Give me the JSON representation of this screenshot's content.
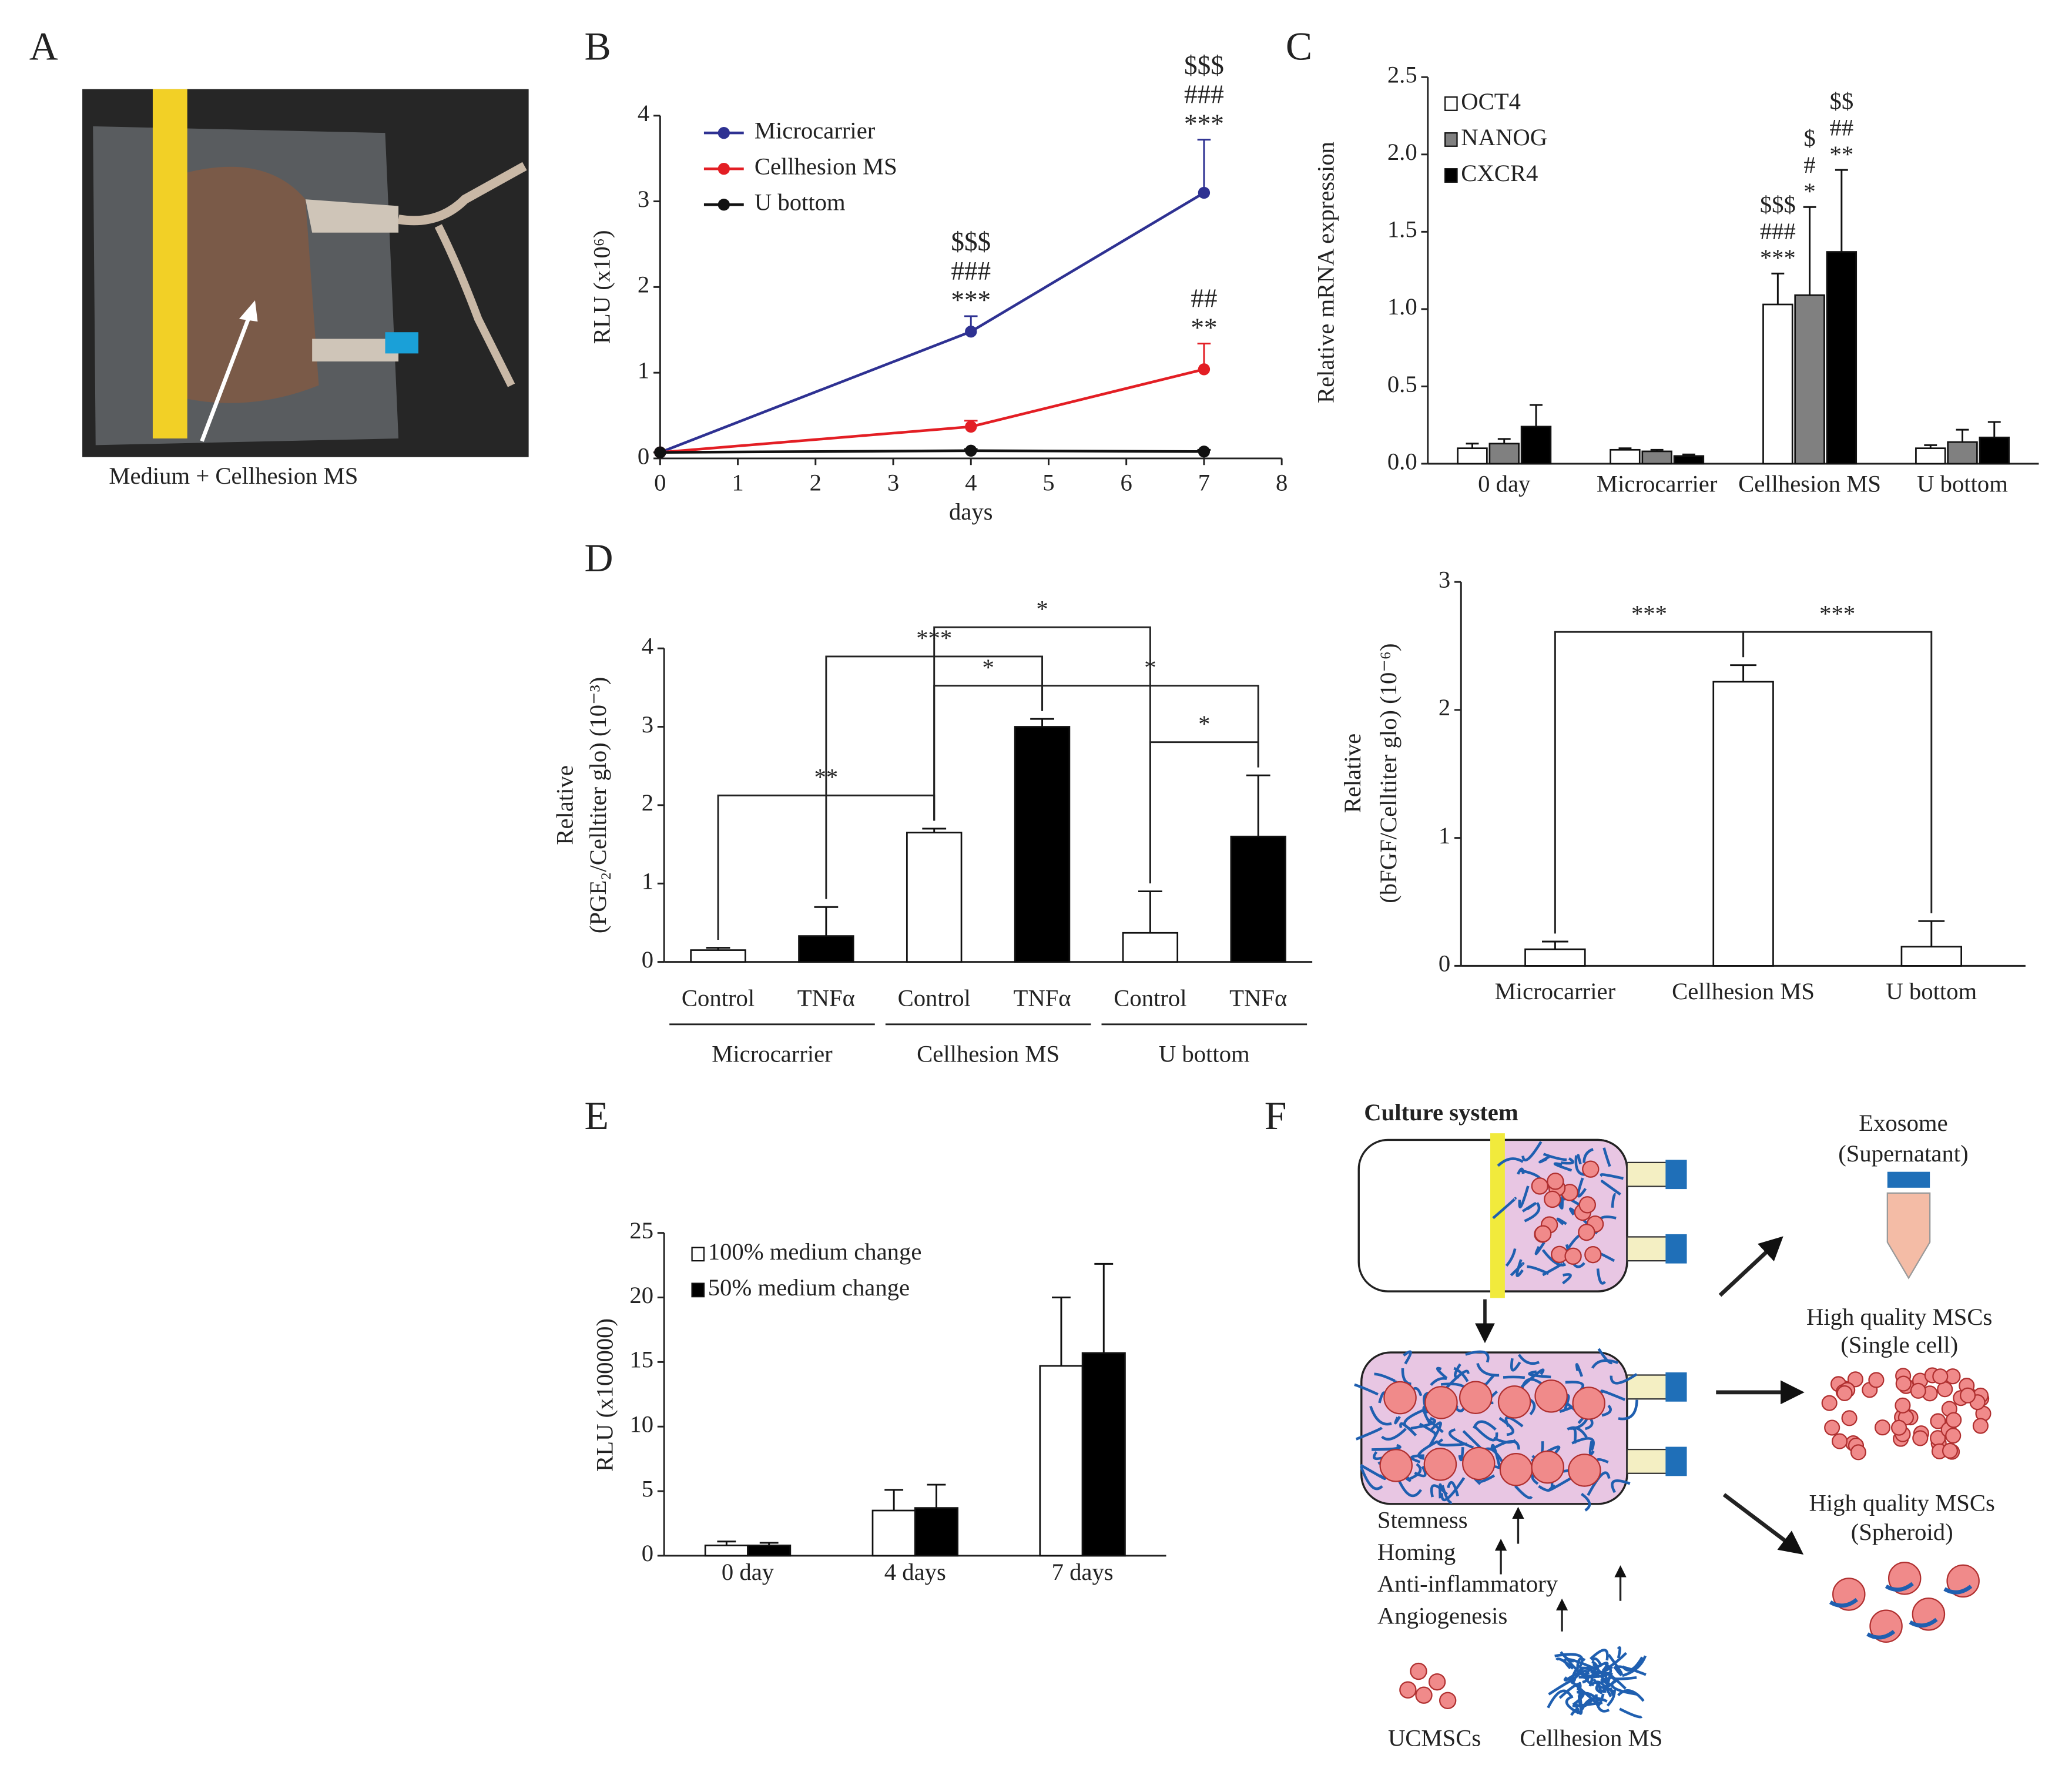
{
  "panel_labels": [
    "A",
    "B",
    "C",
    "D",
    "E",
    "F"
  ],
  "photo_caption": "Medium + Cellhesion MS",
  "chart_data": [
    {
      "type": "line",
      "ylabel": "RLU (x10⁶)",
      "xlabel": "days",
      "x": [
        0,
        4,
        7
      ],
      "xlim": [
        0,
        8
      ],
      "xticks": [
        0,
        1,
        2,
        3,
        4,
        5,
        6,
        7,
        8
      ],
      "ylim": [
        0,
        4
      ],
      "yticks": [
        0,
        1,
        2,
        3,
        4
      ],
      "legend": "upper left",
      "series": [
        {
          "name": "Microcarrier",
          "color": "#2e3192",
          "values": [
            0.07,
            1.48,
            3.1
          ],
          "errors": [
            0,
            0.18,
            0.62
          ],
          "significance": [
            null,
            [
              "$$$",
              "###",
              "***"
            ],
            [
              "$$$",
              "###",
              "***"
            ]
          ]
        },
        {
          "name": "Cellhesion MS",
          "color": "#e31e24",
          "values": [
            0.07,
            0.37,
            1.04
          ],
          "errors": [
            0,
            0.07,
            0.3
          ],
          "significance": [
            null,
            null,
            [
              "##",
              "**"
            ]
          ]
        },
        {
          "name": "U bottom",
          "color": "#111111",
          "values": [
            0.07,
            0.09,
            0.08
          ],
          "errors": [
            0,
            0.02,
            0.02
          ],
          "significance": [
            null,
            null,
            null
          ]
        }
      ]
    },
    {
      "type": "bar",
      "ylabel": "Relative mRNA expression",
      "categories": [
        "0 day",
        "Microcarrier",
        "Cellhesion MS",
        "U bottom"
      ],
      "ylim": [
        0,
        2.5
      ],
      "yticks": [
        {
          "value": 0,
          "label": "0.0"
        },
        0.5,
        {
          "value": 1,
          "label": "1.0"
        },
        1.5,
        {
          "value": 2,
          "label": "2.0"
        },
        2.5
      ],
      "legend": "upper left",
      "series": [
        {
          "name": "OCT4",
          "color": "#ffffff",
          "values": [
            0.1,
            0.09,
            1.03,
            0.1
          ],
          "errors": [
            0.03,
            0.01,
            0.2,
            0.02
          ],
          "significance": [
            null,
            null,
            [
              "$$$",
              "###",
              "***"
            ],
            null
          ]
        },
        {
          "name": "NANOG",
          "color": "#808080",
          "values": [
            0.13,
            0.08,
            1.09,
            0.14
          ],
          "errors": [
            0.03,
            0.01,
            0.57,
            0.08
          ],
          "significance": [
            null,
            null,
            [
              "$",
              "#",
              "*"
            ],
            null
          ]
        },
        {
          "name": "CXCR4",
          "color": "#000000",
          "values": [
            0.24,
            0.05,
            1.37,
            0.17
          ],
          "errors": [
            0.14,
            0.01,
            0.53,
            0.1
          ],
          "significance": [
            null,
            null,
            [
              "$$",
              "##",
              "**"
            ],
            null
          ]
        }
      ]
    },
    {
      "type": "bar",
      "ylabel": [
        "Relative",
        "(PGE₂/Celltiter glo) (10⁻³)"
      ],
      "categories": [
        "Control",
        "TNFα",
        "Control",
        "TNFα",
        "Control",
        "TNFα"
      ],
      "groups": [
        "Microcarrier",
        "Cellhesion MS",
        "U bottom"
      ],
      "ylim": [
        0,
        4
      ],
      "yticks": [
        0,
        1,
        2,
        3,
        4
      ],
      "values": [
        0.15,
        0.33,
        1.65,
        3.0,
        0.37,
        1.6
      ],
      "errors": [
        0.03,
        0.37,
        0.05,
        0.1,
        0.53,
        0.78
      ],
      "colors": [
        "#ffffff",
        "#000000",
        "#ffffff",
        "#000000",
        "#ffffff",
        "#000000"
      ],
      "comparisons": [
        {
          "bars": [
            0,
            2
          ],
          "label": "**"
        },
        {
          "bars": [
            1,
            3
          ],
          "label": "***"
        },
        {
          "bars": [
            2,
            3
          ],
          "label": "*"
        },
        {
          "bars": [
            4,
            5
          ],
          "label": "*"
        },
        {
          "bars": [
            3,
            5
          ],
          "label": "*"
        },
        {
          "bars": [
            2,
            4
          ],
          "label": "*"
        }
      ]
    },
    {
      "type": "bar",
      "ylabel": [
        "Relative",
        "(bFGF/Celltiter glo) (10⁻⁶)"
      ],
      "categories": [
        "Microcarrier",
        "Cellhesion MS",
        "U bottom"
      ],
      "ylim": [
        0,
        3
      ],
      "yticks": [
        0,
        1,
        2,
        3
      ],
      "values": [
        0.13,
        2.22,
        0.15
      ],
      "errors": [
        0.06,
        0.13,
        0.2
      ],
      "color": "#ffffff",
      "comparisons": [
        {
          "bars": [
            0,
            1
          ],
          "label": "***"
        },
        {
          "bars": [
            1,
            2
          ],
          "label": "***"
        }
      ]
    },
    {
      "type": "bar",
      "ylabel": "RLU (x100000)",
      "categories": [
        "0 day",
        "4 days",
        "7 days"
      ],
      "ylim": [
        0,
        25
      ],
      "yticks": [
        0,
        5,
        10,
        15,
        20,
        25
      ],
      "legend": "upper left",
      "series": [
        {
          "name": "100% medium change",
          "color": "#ffffff",
          "values": [
            0.8,
            3.5,
            14.7
          ],
          "errors": [
            0.3,
            1.6,
            5.3
          ]
        },
        {
          "name": "50% medium change",
          "color": "#000000",
          "values": [
            0.8,
            3.7,
            15.7
          ],
          "errors": [
            0.2,
            1.8,
            6.9
          ]
        }
      ]
    }
  ],
  "diagram": {
    "title": "Culture system",
    "outputs": [
      [
        "Exosome",
        "(Supernatant)"
      ],
      [
        "High quality MSCs",
        "(Single cell)"
      ],
      [
        "High quality MSCs",
        "(Spheroid)"
      ]
    ],
    "effects": [
      "Stemness",
      "Homing",
      "Anti-inflammatory",
      "Angiogenesis"
    ],
    "legend": [
      "UCMSCs",
      "Cellhesion MS"
    ]
  }
}
